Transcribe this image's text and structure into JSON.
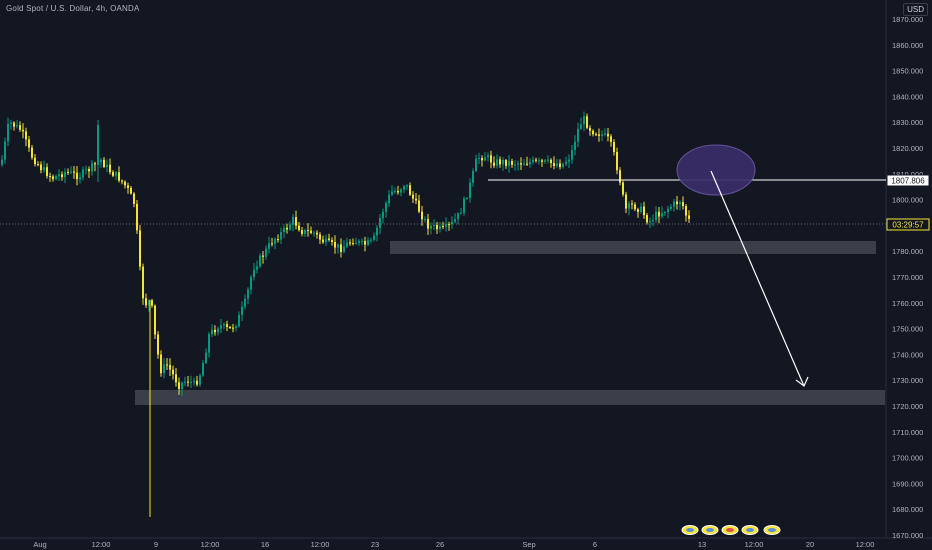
{
  "header": {
    "symbol_title": "Gold Spot / U.S. Dollar, 4h, OANDA",
    "currency": "USD"
  },
  "price_axis": {
    "labels": [
      "1870.000",
      "1860.000",
      "1850.000",
      "1840.000",
      "1830.000",
      "1820.000",
      "1810.000",
      "1800.000",
      "1790.000",
      "1780.000",
      "1770.000",
      "1760.000",
      "1750.000",
      "1740.000",
      "1730.000",
      "1720.000",
      "1710.000",
      "1700.000",
      "1690.000",
      "1680.000",
      "1670.000"
    ],
    "max": 1870,
    "min": 1670,
    "current_price_tag": "1807.806",
    "countdown_tag": "03:29:57"
  },
  "time_axis": {
    "labels": [
      "Aug",
      "12:00",
      "9",
      "12:00",
      "16",
      "12:00",
      "23",
      "26",
      "Sep",
      "6",
      "13",
      "12:00",
      "20",
      "12:00"
    ]
  },
  "colors": {
    "background": "#131722",
    "up": "#089981",
    "down": "#f5e33a",
    "zone": "#434651",
    "ellipse": "#5a4b8f",
    "axis_text": "#b2b5be"
  },
  "chart_data": {
    "type": "candlestick",
    "ylim": [
      1670,
      1870
    ],
    "resistance_line": 1807.806,
    "support_zones": [
      [
        1778.5,
        1781.5
      ],
      [
        1721.5,
        1726.0
      ]
    ],
    "projection": {
      "from": 1806.5,
      "to": 1727.5
    }
  },
  "bottom_icons": [
    "event-icon-1",
    "event-icon-2",
    "event-icon-3",
    "event-icon-4",
    "event-icon-5"
  ]
}
